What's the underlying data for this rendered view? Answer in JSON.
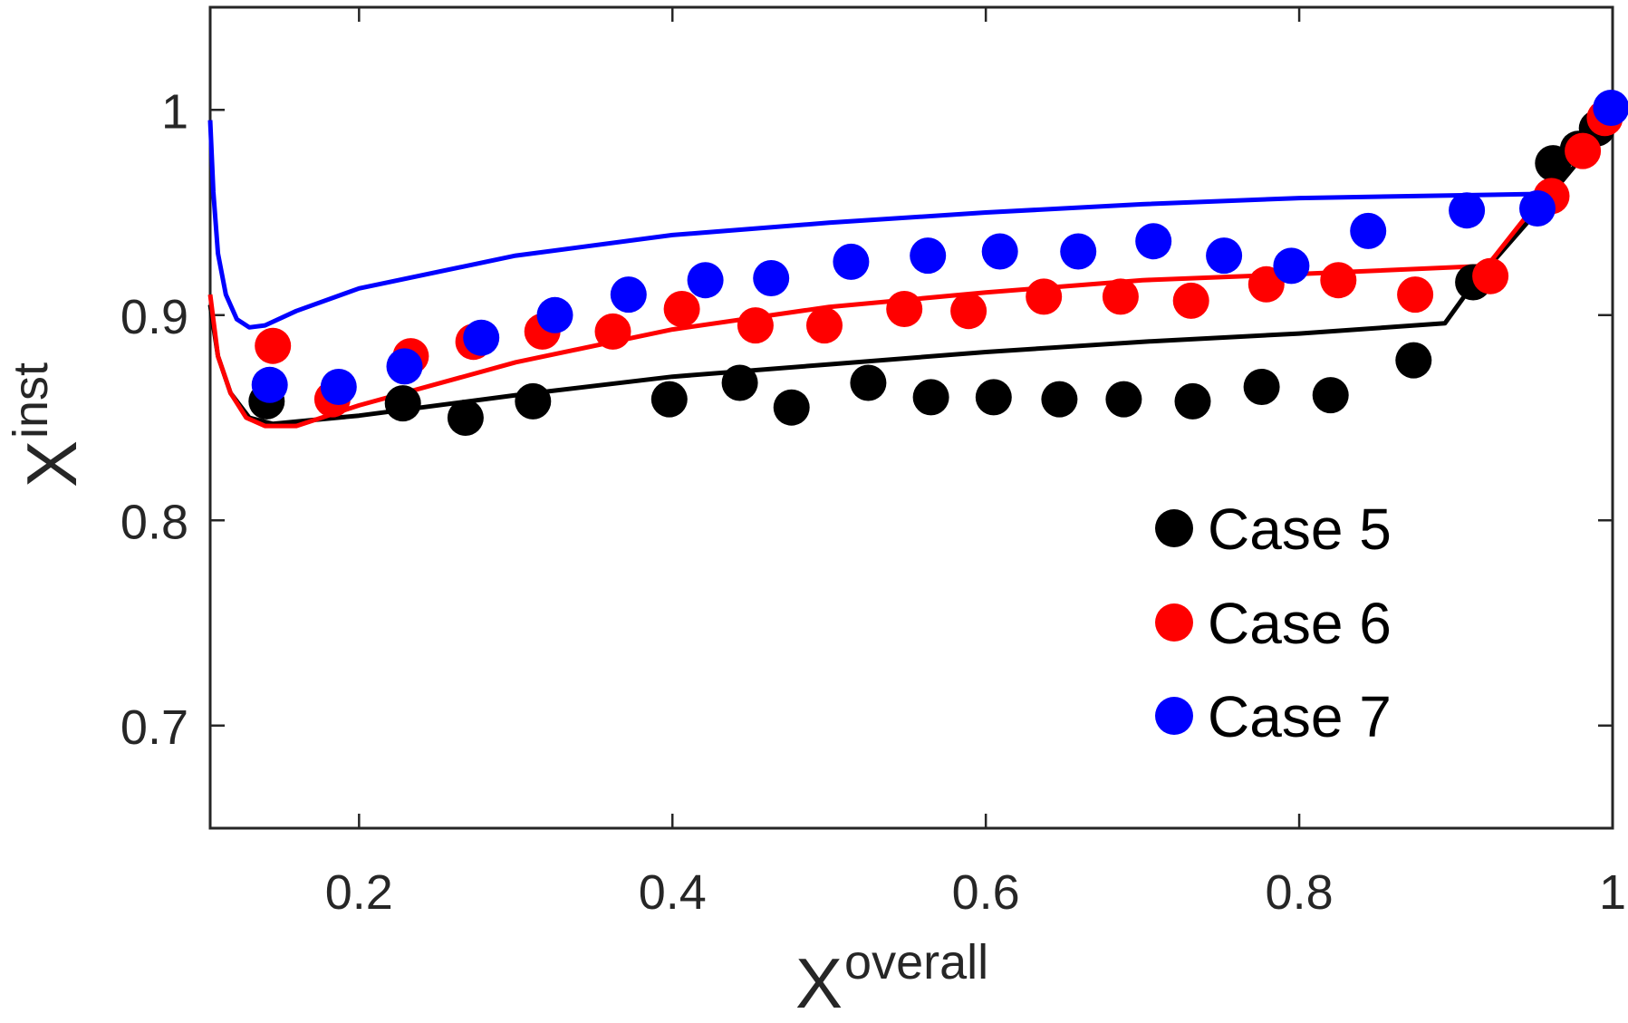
{
  "chart_data": {
    "type": "scatter",
    "xlabel": {
      "base": "X",
      "sup": "overall"
    },
    "ylabel": {
      "base": "X",
      "sup": "inst"
    },
    "xlim": [
      0.105,
      1.0
    ],
    "ylim": [
      0.65,
      1.05
    ],
    "xticks": [
      0.2,
      0.4,
      0.6,
      0.8,
      1.0
    ],
    "xtick_labels": [
      "0.2",
      "0.4",
      "0.6",
      "0.8",
      "1"
    ],
    "yticks": [
      0.7,
      0.8,
      0.9,
      1.0
    ],
    "ytick_labels": [
      "0.7",
      "0.8",
      "0.9",
      "1"
    ],
    "legend_position": "bottom-right",
    "series": [
      {
        "name": "Case 5",
        "color": "#000000",
        "points": [
          [
            0.141,
            0.858
          ],
          [
            0.228,
            0.857
          ],
          [
            0.268,
            0.85
          ],
          [
            0.311,
            0.858
          ],
          [
            0.398,
            0.859
          ],
          [
            0.443,
            0.867
          ],
          [
            0.476,
            0.855
          ],
          [
            0.525,
            0.867
          ],
          [
            0.565,
            0.86
          ],
          [
            0.605,
            0.86
          ],
          [
            0.647,
            0.859
          ],
          [
            0.688,
            0.859
          ],
          [
            0.732,
            0.858
          ],
          [
            0.776,
            0.865
          ],
          [
            0.82,
            0.861
          ],
          [
            0.873,
            0.878
          ],
          [
            0.911,
            0.916
          ],
          [
            0.962,
            0.974
          ],
          [
            0.978,
            0.981
          ],
          [
            0.99,
            0.991
          ]
        ],
        "line": [
          [
            0.105,
            0.905
          ],
          [
            0.11,
            0.88
          ],
          [
            0.118,
            0.862
          ],
          [
            0.13,
            0.85
          ],
          [
            0.145,
            0.847
          ],
          [
            0.2,
            0.851
          ],
          [
            0.3,
            0.861
          ],
          [
            0.4,
            0.87
          ],
          [
            0.5,
            0.876
          ],
          [
            0.6,
            0.882
          ],
          [
            0.7,
            0.887
          ],
          [
            0.8,
            0.891
          ],
          [
            0.893,
            0.896
          ],
          [
            0.91,
            0.914
          ],
          [
            0.95,
            0.949
          ],
          [
            1.0,
            0.995
          ]
        ]
      },
      {
        "name": "Case 6",
        "color": "#ff0000",
        "points": [
          [
            0.145,
            0.885
          ],
          [
            0.183,
            0.859
          ],
          [
            0.233,
            0.88
          ],
          [
            0.273,
            0.887
          ],
          [
            0.317,
            0.892
          ],
          [
            0.362,
            0.892
          ],
          [
            0.406,
            0.903
          ],
          [
            0.453,
            0.895
          ],
          [
            0.497,
            0.895
          ],
          [
            0.548,
            0.903
          ],
          [
            0.589,
            0.902
          ],
          [
            0.637,
            0.909
          ],
          [
            0.686,
            0.909
          ],
          [
            0.731,
            0.907
          ],
          [
            0.779,
            0.915
          ],
          [
            0.825,
            0.917
          ],
          [
            0.874,
            0.91
          ],
          [
            0.922,
            0.919
          ],
          [
            0.961,
            0.958
          ],
          [
            0.981,
            0.98
          ],
          [
            0.995,
            0.996
          ]
        ],
        "line": [
          [
            0.105,
            0.91
          ],
          [
            0.11,
            0.88
          ],
          [
            0.118,
            0.862
          ],
          [
            0.128,
            0.85
          ],
          [
            0.14,
            0.846
          ],
          [
            0.16,
            0.846
          ],
          [
            0.2,
            0.856
          ],
          [
            0.3,
            0.877
          ],
          [
            0.4,
            0.893
          ],
          [
            0.5,
            0.904
          ],
          [
            0.6,
            0.911
          ],
          [
            0.7,
            0.917
          ],
          [
            0.8,
            0.92
          ],
          [
            0.92,
            0.924
          ],
          [
            0.95,
            0.953
          ],
          [
            1.0,
            0.999
          ]
        ]
      },
      {
        "name": "Case 7",
        "color": "#0000ff",
        "points": [
          [
            0.143,
            0.866
          ],
          [
            0.187,
            0.865
          ],
          [
            0.229,
            0.875
          ],
          [
            0.278,
            0.889
          ],
          [
            0.325,
            0.9
          ],
          [
            0.372,
            0.91
          ],
          [
            0.421,
            0.917
          ],
          [
            0.463,
            0.918
          ],
          [
            0.514,
            0.926
          ],
          [
            0.563,
            0.929
          ],
          [
            0.609,
            0.931
          ],
          [
            0.659,
            0.931
          ],
          [
            0.707,
            0.936
          ],
          [
            0.752,
            0.929
          ],
          [
            0.795,
            0.924
          ],
          [
            0.844,
            0.941
          ],
          [
            0.907,
            0.951
          ],
          [
            0.952,
            0.952
          ],
          [
            0.999,
            1.001
          ]
        ],
        "line": [
          [
            0.105,
            0.995
          ],
          [
            0.107,
            0.96
          ],
          [
            0.11,
            0.93
          ],
          [
            0.115,
            0.91
          ],
          [
            0.122,
            0.898
          ],
          [
            0.13,
            0.894
          ],
          [
            0.14,
            0.895
          ],
          [
            0.16,
            0.902
          ],
          [
            0.2,
            0.913
          ],
          [
            0.3,
            0.929
          ],
          [
            0.4,
            0.939
          ],
          [
            0.5,
            0.945
          ],
          [
            0.6,
            0.95
          ],
          [
            0.7,
            0.954
          ],
          [
            0.8,
            0.957
          ],
          [
            0.95,
            0.959
          ],
          [
            1.0,
            1.001
          ]
        ]
      }
    ]
  }
}
